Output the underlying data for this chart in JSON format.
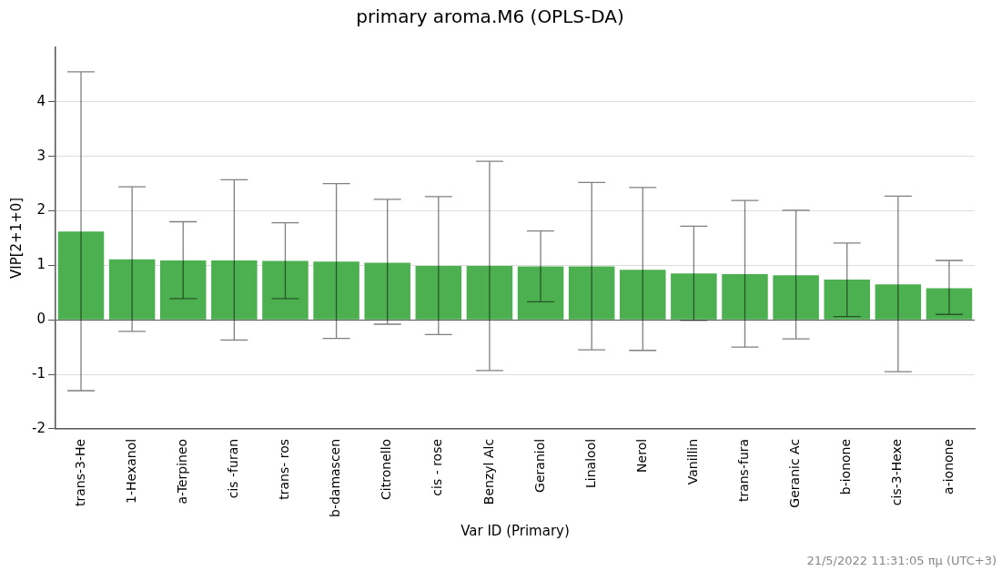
{
  "chart_data": {
    "type": "bar",
    "title": "primary aroma.M6 (OPLS-DA)",
    "xlabel": "Var ID (Primary)",
    "ylabel": "VIP[2+1+0]",
    "categories": [
      "trans-3-He",
      "1-Hexanol",
      "a-Terpineo",
      "cis -furan",
      "trans- ros",
      "b-damascen",
      "Citronello",
      "cis - rose",
      "Benzyl Alc",
      "Geraniol",
      "Linalool",
      "Nerol",
      "Vanillin",
      "trans-fura",
      "Geranic Ac",
      "b-ionone",
      "cis-3-Hexe",
      "a-ionone"
    ],
    "series": [
      {
        "color": "#4caf50",
        "values": [
          1.62,
          1.11,
          1.09,
          1.09,
          1.08,
          1.07,
          1.05,
          0.99,
          0.99,
          0.98,
          0.98,
          0.92,
          0.85,
          0.84,
          0.82,
          0.74,
          0.65,
          0.58
        ],
        "errors": [
          [
            -1.3,
            4.55
          ],
          [
            -0.21,
            2.44
          ],
          [
            0.39,
            1.8
          ],
          [
            -0.37,
            2.57
          ],
          [
            0.39,
            1.78
          ],
          [
            -0.34,
            2.5
          ],
          [
            -0.08,
            2.21
          ],
          [
            -0.27,
            2.26
          ],
          [
            -0.93,
            2.91
          ],
          [
            0.33,
            1.63
          ],
          [
            -0.55,
            2.52
          ],
          [
            -0.56,
            2.43
          ],
          [
            -0.01,
            1.72
          ],
          [
            -0.5,
            2.19
          ],
          [
            -0.35,
            2.01
          ],
          [
            0.06,
            1.41
          ],
          [
            -0.95,
            2.27
          ],
          [
            0.1,
            1.09
          ]
        ]
      }
    ],
    "ylim": [
      -2,
      5
    ],
    "yticks": [
      -2,
      -1,
      0,
      1,
      2,
      3,
      4
    ],
    "grid": "y",
    "legend": false,
    "annotations": [
      "21/5/2022 11:31:05 πμ (UTC+3)"
    ]
  }
}
